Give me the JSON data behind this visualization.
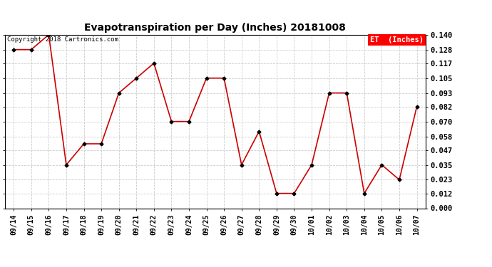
{
  "title": "Evapotranspiration per Day (Inches) 20181008",
  "copyright": "Copyright 2018 Cartronics.com",
  "legend_label": "ET  (Inches)",
  "legend_bg": "#ff0000",
  "legend_text_color": "#ffffff",
  "line_color": "#cc0000",
  "marker_color": "#000000",
  "categories": [
    "09/14",
    "09/15",
    "09/16",
    "09/17",
    "09/18",
    "09/19",
    "09/20",
    "09/21",
    "09/22",
    "09/23",
    "09/24",
    "09/25",
    "09/26",
    "09/27",
    "09/28",
    "09/29",
    "09/30",
    "10/01",
    "10/02",
    "10/03",
    "10/04",
    "10/05",
    "10/06",
    "10/07"
  ],
  "values": [
    0.128,
    0.128,
    0.14,
    0.035,
    0.052,
    0.052,
    0.093,
    0.105,
    0.117,
    0.07,
    0.07,
    0.105,
    0.105,
    0.035,
    0.062,
    0.012,
    0.012,
    0.035,
    0.093,
    0.093,
    0.012,
    0.035,
    0.023,
    0.082
  ],
  "ylim": [
    0.0,
    0.14
  ],
  "yticks": [
    0.0,
    0.012,
    0.023,
    0.035,
    0.047,
    0.058,
    0.07,
    0.082,
    0.093,
    0.105,
    0.117,
    0.128,
    0.14
  ],
  "background_color": "#ffffff",
  "grid_color": "#cccccc"
}
